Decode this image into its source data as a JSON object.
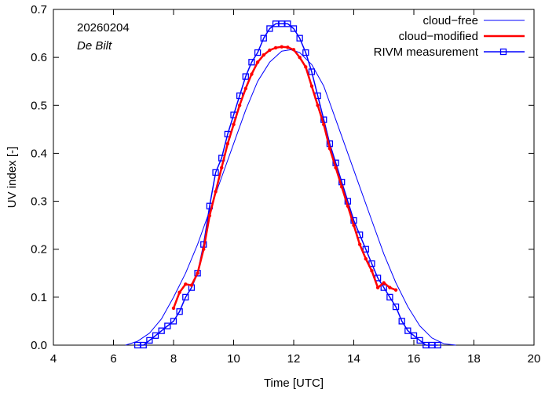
{
  "chart_data": {
    "type": "line",
    "annotations": {
      "date": "20260204",
      "location": "De Bilt"
    },
    "xlabel": "Time  [UTC]",
    "ylabel": "UV index  [-]",
    "xlim": [
      4,
      20
    ],
    "ylim": [
      0,
      0.7
    ],
    "xticks": [
      4,
      6,
      8,
      10,
      12,
      14,
      16,
      18,
      20
    ],
    "yticks": [
      0.0,
      0.1,
      0.2,
      0.3,
      0.4,
      0.5,
      0.6,
      0.7
    ],
    "ytick_labels": [
      "0.0",
      "0.1",
      "0.2",
      "0.3",
      "0.4",
      "0.5",
      "0.6",
      "0.7"
    ],
    "legend_position": "top-right",
    "colors": {
      "cloud_free": "#0000ff",
      "cloud_modified": "#ff0000",
      "measurement": "#0000ff"
    },
    "series": [
      {
        "name": "cloud−free",
        "style": "thin-line",
        "x": [
          6.4,
          6.8,
          7.2,
          7.6,
          8.0,
          8.4,
          8.8,
          9.2,
          9.6,
          10.0,
          10.4,
          10.8,
          11.2,
          11.6,
          11.9,
          12.2,
          12.6,
          13.0,
          13.4,
          13.8,
          14.2,
          14.6,
          15.0,
          15.4,
          15.8,
          16.2,
          16.6,
          17.0,
          17.4
        ],
        "values": [
          0.0,
          0.008,
          0.025,
          0.055,
          0.1,
          0.15,
          0.21,
          0.28,
          0.35,
          0.42,
          0.49,
          0.55,
          0.59,
          0.613,
          0.616,
          0.61,
          0.585,
          0.54,
          0.47,
          0.4,
          0.33,
          0.26,
          0.19,
          0.13,
          0.08,
          0.04,
          0.015,
          0.003,
          0.0
        ]
      },
      {
        "name": "cloud−modified",
        "style": "thick-line-dots",
        "x": [
          8.0,
          8.2,
          8.4,
          8.6,
          8.8,
          9.0,
          9.2,
          9.4,
          9.6,
          9.8,
          10.0,
          10.2,
          10.4,
          10.6,
          10.8,
          11.0,
          11.2,
          11.4,
          11.6,
          11.8,
          12.0,
          12.2,
          12.4,
          12.6,
          12.8,
          13.0,
          13.2,
          13.4,
          13.6,
          13.8,
          14.0,
          14.2,
          14.4,
          14.6,
          14.8,
          15.0,
          15.2,
          15.4
        ],
        "values": [
          0.077,
          0.11,
          0.127,
          0.125,
          0.15,
          0.2,
          0.27,
          0.32,
          0.37,
          0.42,
          0.46,
          0.5,
          0.535,
          0.565,
          0.59,
          0.605,
          0.615,
          0.62,
          0.622,
          0.621,
          0.616,
          0.6,
          0.58,
          0.54,
          0.5,
          0.46,
          0.41,
          0.37,
          0.33,
          0.29,
          0.25,
          0.21,
          0.18,
          0.155,
          0.12,
          0.13,
          0.12,
          0.115
        ]
      },
      {
        "name": "RIVM measurement",
        "style": "line-open-squares",
        "x": [
          6.8,
          7.0,
          7.2,
          7.4,
          7.6,
          7.8,
          8.0,
          8.2,
          8.4,
          8.6,
          8.8,
          9.0,
          9.2,
          9.4,
          9.6,
          9.8,
          10.0,
          10.2,
          10.4,
          10.6,
          10.8,
          11.0,
          11.2,
          11.4,
          11.6,
          11.8,
          12.0,
          12.2,
          12.4,
          12.6,
          12.8,
          13.0,
          13.2,
          13.4,
          13.6,
          13.8,
          14.0,
          14.2,
          14.4,
          14.6,
          14.8,
          15.0,
          15.2,
          15.4,
          15.6,
          15.8,
          16.0,
          16.2,
          16.4,
          16.6,
          16.8
        ],
        "values": [
          0.0,
          0.0,
          0.01,
          0.02,
          0.03,
          0.04,
          0.05,
          0.07,
          0.1,
          0.12,
          0.15,
          0.21,
          0.29,
          0.36,
          0.39,
          0.44,
          0.48,
          0.52,
          0.56,
          0.59,
          0.61,
          0.64,
          0.66,
          0.67,
          0.67,
          0.67,
          0.66,
          0.64,
          0.61,
          0.57,
          0.52,
          0.47,
          0.42,
          0.38,
          0.34,
          0.3,
          0.26,
          0.23,
          0.2,
          0.17,
          0.14,
          0.12,
          0.1,
          0.08,
          0.05,
          0.03,
          0.02,
          0.01,
          0.0,
          0.0,
          0.0
        ]
      }
    ]
  }
}
